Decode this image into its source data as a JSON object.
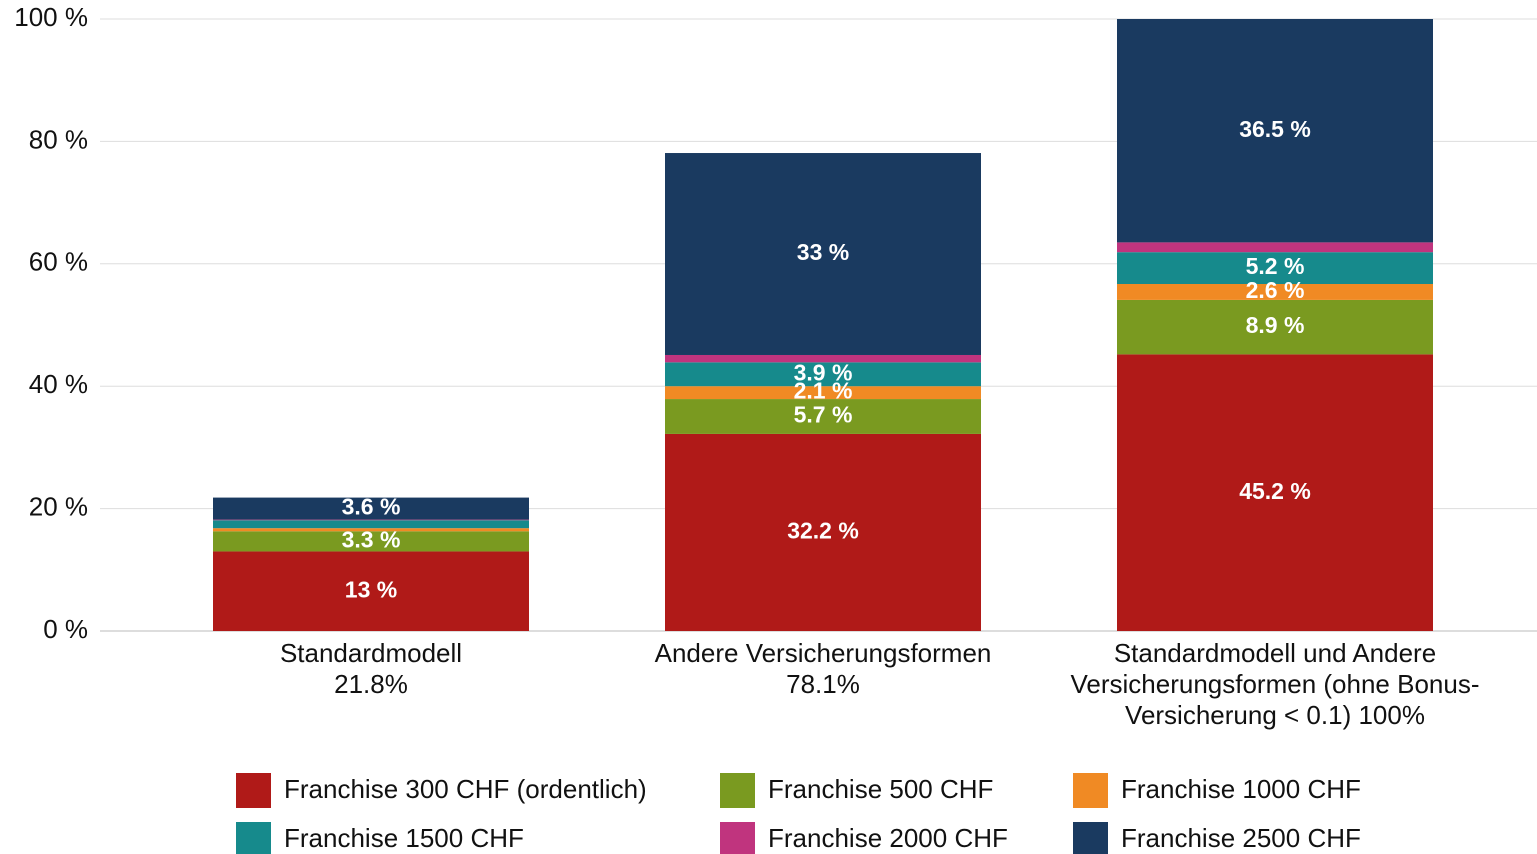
{
  "chart_data": {
    "type": "stacked_bar",
    "categories": [
      "Standardmodell 21.8%",
      "Andere Versicherungsformen 78.1%",
      "Standardmodell und Andere Versicherungsformen (ohne Bonus-Versicherung < 0.1) 100%"
    ],
    "series": [
      {
        "name": "Franchise 300 CHF (ordentlich)",
        "color": "#b01a18",
        "values": [
          13,
          32.2,
          45.2
        ],
        "value_labels": [
          "13 %",
          "32.2 %",
          "45.2 %"
        ]
      },
      {
        "name": "Franchise 500 CHF",
        "color": "#7a9a20",
        "values": [
          3.3,
          5.7,
          8.9
        ],
        "value_labels": [
          "3.3 %",
          "5.7 %",
          "8.9 %"
        ]
      },
      {
        "name": "Franchise 1000 CHF",
        "color": "#f08a24",
        "values": [
          0.5,
          2.1,
          2.6
        ],
        "value_labels": [
          null,
          "2.1 %",
          "2.6 %"
        ]
      },
      {
        "name": "Franchise 1500 CHF",
        "color": "#168a8c",
        "values": [
          1.3,
          3.9,
          5.2
        ],
        "value_labels": [
          null,
          "3.9 %",
          "5.2 %"
        ]
      },
      {
        "name": "Franchise 2000 CHF",
        "color": "#c0347e",
        "values": [
          0.1,
          1.2,
          1.6
        ],
        "value_labels": [
          null,
          null,
          null
        ]
      },
      {
        "name": "Franchise 2500 CHF",
        "color": "#1a3a60",
        "values": [
          3.6,
          33,
          36.5
        ],
        "value_labels": [
          "3.6 %",
          "33 %",
          "36.5 %"
        ]
      }
    ],
    "ylim": [
      0,
      100
    ],
    "yticks": [
      {
        "value": 0,
        "label": "0 %"
      },
      {
        "value": 20,
        "label": "20 %"
      },
      {
        "value": 40,
        "label": "40 %"
      },
      {
        "value": 60,
        "label": "60 %"
      },
      {
        "value": 80,
        "label": "80 %"
      },
      {
        "value": 100,
        "label": "100 %"
      }
    ],
    "grid": true
  }
}
